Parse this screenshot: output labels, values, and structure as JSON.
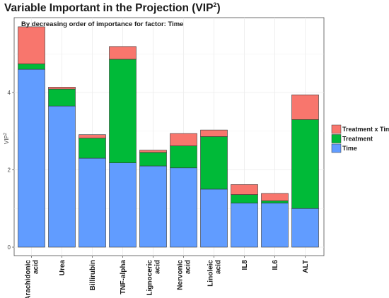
{
  "chart_data": {
    "type": "bar",
    "stacked": true,
    "title": "Variable Important in the Projection (VIP",
    "title_superscript": "2",
    "title_close": ")",
    "subtitle": "By decreasing order of importance for factor: Time",
    "ylabel": "VIP",
    "ylabel_superscript": "2",
    "xlabel": "",
    "ylim": [
      0,
      6
    ],
    "yticks": [
      "0",
      "2",
      "4"
    ],
    "grid": true,
    "legend_position": "right",
    "legend_order": [
      "Treatment x Time",
      "Treatment",
      "Time"
    ],
    "categories": [
      [
        "Arachidonic",
        "acid"
      ],
      [
        "Urea"
      ],
      [
        "Billirubin"
      ],
      [
        "TNF-alpha"
      ],
      [
        "Lignoceric",
        "acid"
      ],
      [
        "Nervonic",
        "acid"
      ],
      [
        "Linoleic",
        "acid"
      ],
      [
        "IL8"
      ],
      [
        "IL6"
      ],
      [
        "ALT"
      ]
    ],
    "series": [
      {
        "name": "Time",
        "color": "#619CFF",
        "values": [
          4.6,
          3.65,
          2.3,
          2.18,
          2.1,
          2.05,
          1.5,
          1.14,
          1.14,
          1.0
        ]
      },
      {
        "name": "Treatment",
        "color": "#00BA38",
        "values": [
          0.14,
          0.44,
          0.52,
          2.68,
          0.35,
          0.57,
          1.36,
          0.22,
          0.06,
          2.3
        ]
      },
      {
        "name": "Treatment x Time",
        "color": "#F8766D",
        "values": [
          0.96,
          0.05,
          0.09,
          0.33,
          0.06,
          0.32,
          0.17,
          0.26,
          0.19,
          0.64
        ]
      }
    ]
  }
}
